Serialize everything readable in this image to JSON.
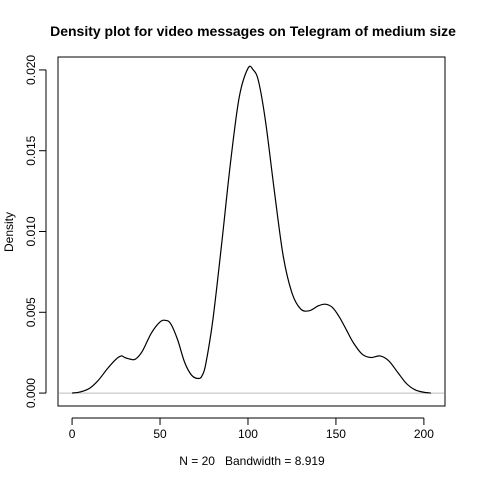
{
  "chart_data": {
    "type": "line",
    "title": "Density plot for video messages on Telegram of medium size",
    "xlabel": "N = 20   Bandwidth = 8.919",
    "ylabel": "Density",
    "xlim": [
      -8,
      212
    ],
    "ylim": [
      -0.0008,
      0.0208
    ],
    "x_ticks": [
      0,
      50,
      100,
      150,
      200
    ],
    "x_tick_labels": [
      "0",
      "50",
      "100",
      "150",
      "200"
    ],
    "y_ticks": [
      0.0,
      0.005,
      0.01,
      0.015,
      0.02
    ],
    "y_tick_labels": [
      "0.000",
      "0.005",
      "0.010",
      "0.015",
      "0.020"
    ],
    "grid": false,
    "baseline": {
      "y": 0,
      "color": "#bebebe"
    },
    "series": [
      {
        "color": "#000000",
        "x": [
          0,
          5,
          10,
          15,
          20,
          25,
          28,
          30,
          33,
          36,
          40,
          45,
          50,
          53,
          56,
          60,
          64,
          68,
          72,
          74,
          76,
          80,
          85,
          90,
          95,
          100,
          103,
          106,
          110,
          115,
          120,
          125,
          130,
          135,
          140,
          144,
          148,
          152,
          156,
          160,
          165,
          170,
          175,
          180,
          185,
          190,
          195,
          200,
          204
        ],
        "y": [
          0.0,
          8e-05,
          0.0003,
          0.0008,
          0.0015,
          0.0021,
          0.0023,
          0.0022,
          0.0021,
          0.0021,
          0.0026,
          0.0037,
          0.0044,
          0.0045,
          0.0043,
          0.0033,
          0.0019,
          0.0011,
          0.0009,
          0.0011,
          0.0018,
          0.0045,
          0.0092,
          0.0142,
          0.0183,
          0.0201,
          0.02,
          0.0193,
          0.0168,
          0.0125,
          0.0085,
          0.0062,
          0.0052,
          0.0051,
          0.0054,
          0.0055,
          0.0053,
          0.0047,
          0.0039,
          0.0031,
          0.0024,
          0.0022,
          0.0023,
          0.002,
          0.0013,
          0.0006,
          0.0002,
          5e-05,
          0.0
        ]
      }
    ]
  }
}
